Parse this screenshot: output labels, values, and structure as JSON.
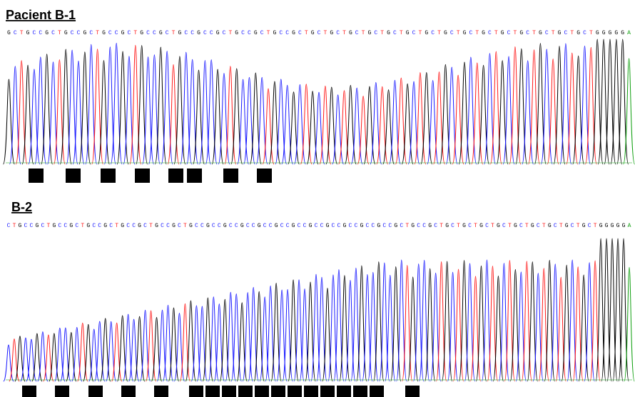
{
  "panels": [
    {
      "title": "Pacient B-1",
      "sequence": "GCTGCCGCTGCCGCTGCCGCTGCCGCTGCCGCCGCTGCCGCTGCCGCTGCTGCTGCTGCTGCTGCTGCTGCTGCTGCTGCTGCTGCTGCTGCTGGGGGA"
    },
    {
      "title": "B-2",
      "sequence": "CTGCCGCTGCCGCTGCCGCTGCCGCTGCCGCTGCCGCCGCCGCCGCCGCCGCCGCCGCCGCCGCCGCCGCTGCCGCTGCTGCTGCTGCTGCTGCTGCTGCTGCTGGGGGA"
    }
  ]
}
